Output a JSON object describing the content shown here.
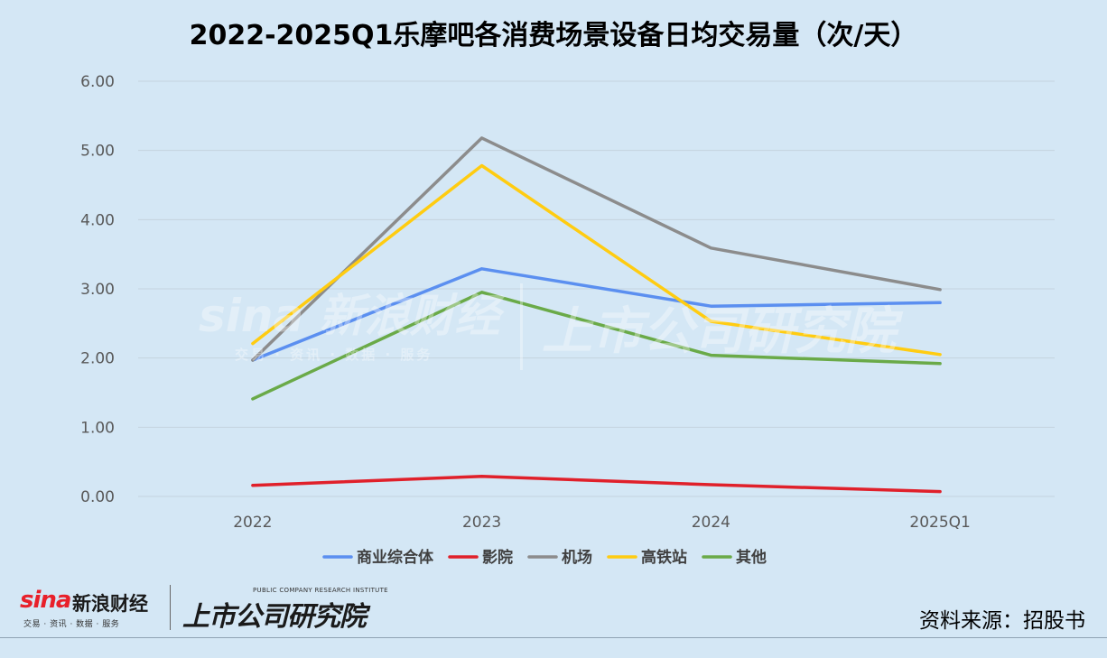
{
  "chart_data": {
    "type": "line",
    "title": "2022-2025Q1乐摩吧各消费场景设备日均交易量（次/天）",
    "categories": [
      "2022",
      "2023",
      "2024",
      "2025Q1"
    ],
    "ylim": [
      0,
      6
    ],
    "yticks": [
      "0.00",
      "1.00",
      "2.00",
      "3.00",
      "4.00",
      "5.00",
      "6.00"
    ],
    "grid": true,
    "legend_position": "bottom",
    "series": [
      {
        "name": "商业综合体",
        "color": "#5b8ff0",
        "values": [
          1.97,
          3.29,
          2.75,
          2.8
        ]
      },
      {
        "name": "影院",
        "color": "#e0202a",
        "values": [
          0.16,
          0.29,
          0.17,
          0.07
        ]
      },
      {
        "name": "机场",
        "color": "#8c8c8c",
        "values": [
          1.97,
          5.18,
          3.59,
          2.99
        ]
      },
      {
        "name": "高铁站",
        "color": "#ffcc11",
        "values": [
          2.21,
          4.78,
          2.53,
          2.05
        ]
      },
      {
        "name": "其他",
        "color": "#6aaa48",
        "values": [
          1.41,
          2.95,
          2.04,
          1.92
        ]
      }
    ]
  },
  "footer": {
    "sina_logo": "sina",
    "sina_name": "新浪财经",
    "sina_sub": "交易 · 资讯 · 数据 · 服务",
    "institute_en": "PUBLIC COMPANY RESEARCH INSTITUTE",
    "institute_cn": "上市公司研究院",
    "source": "资料来源：招股书"
  },
  "watermark": {
    "sina_text": "sina 新浪财经",
    "sina_sub": "交易 · 资讯 · 数据 · 服务",
    "institute_text": "上市公司研究院"
  }
}
